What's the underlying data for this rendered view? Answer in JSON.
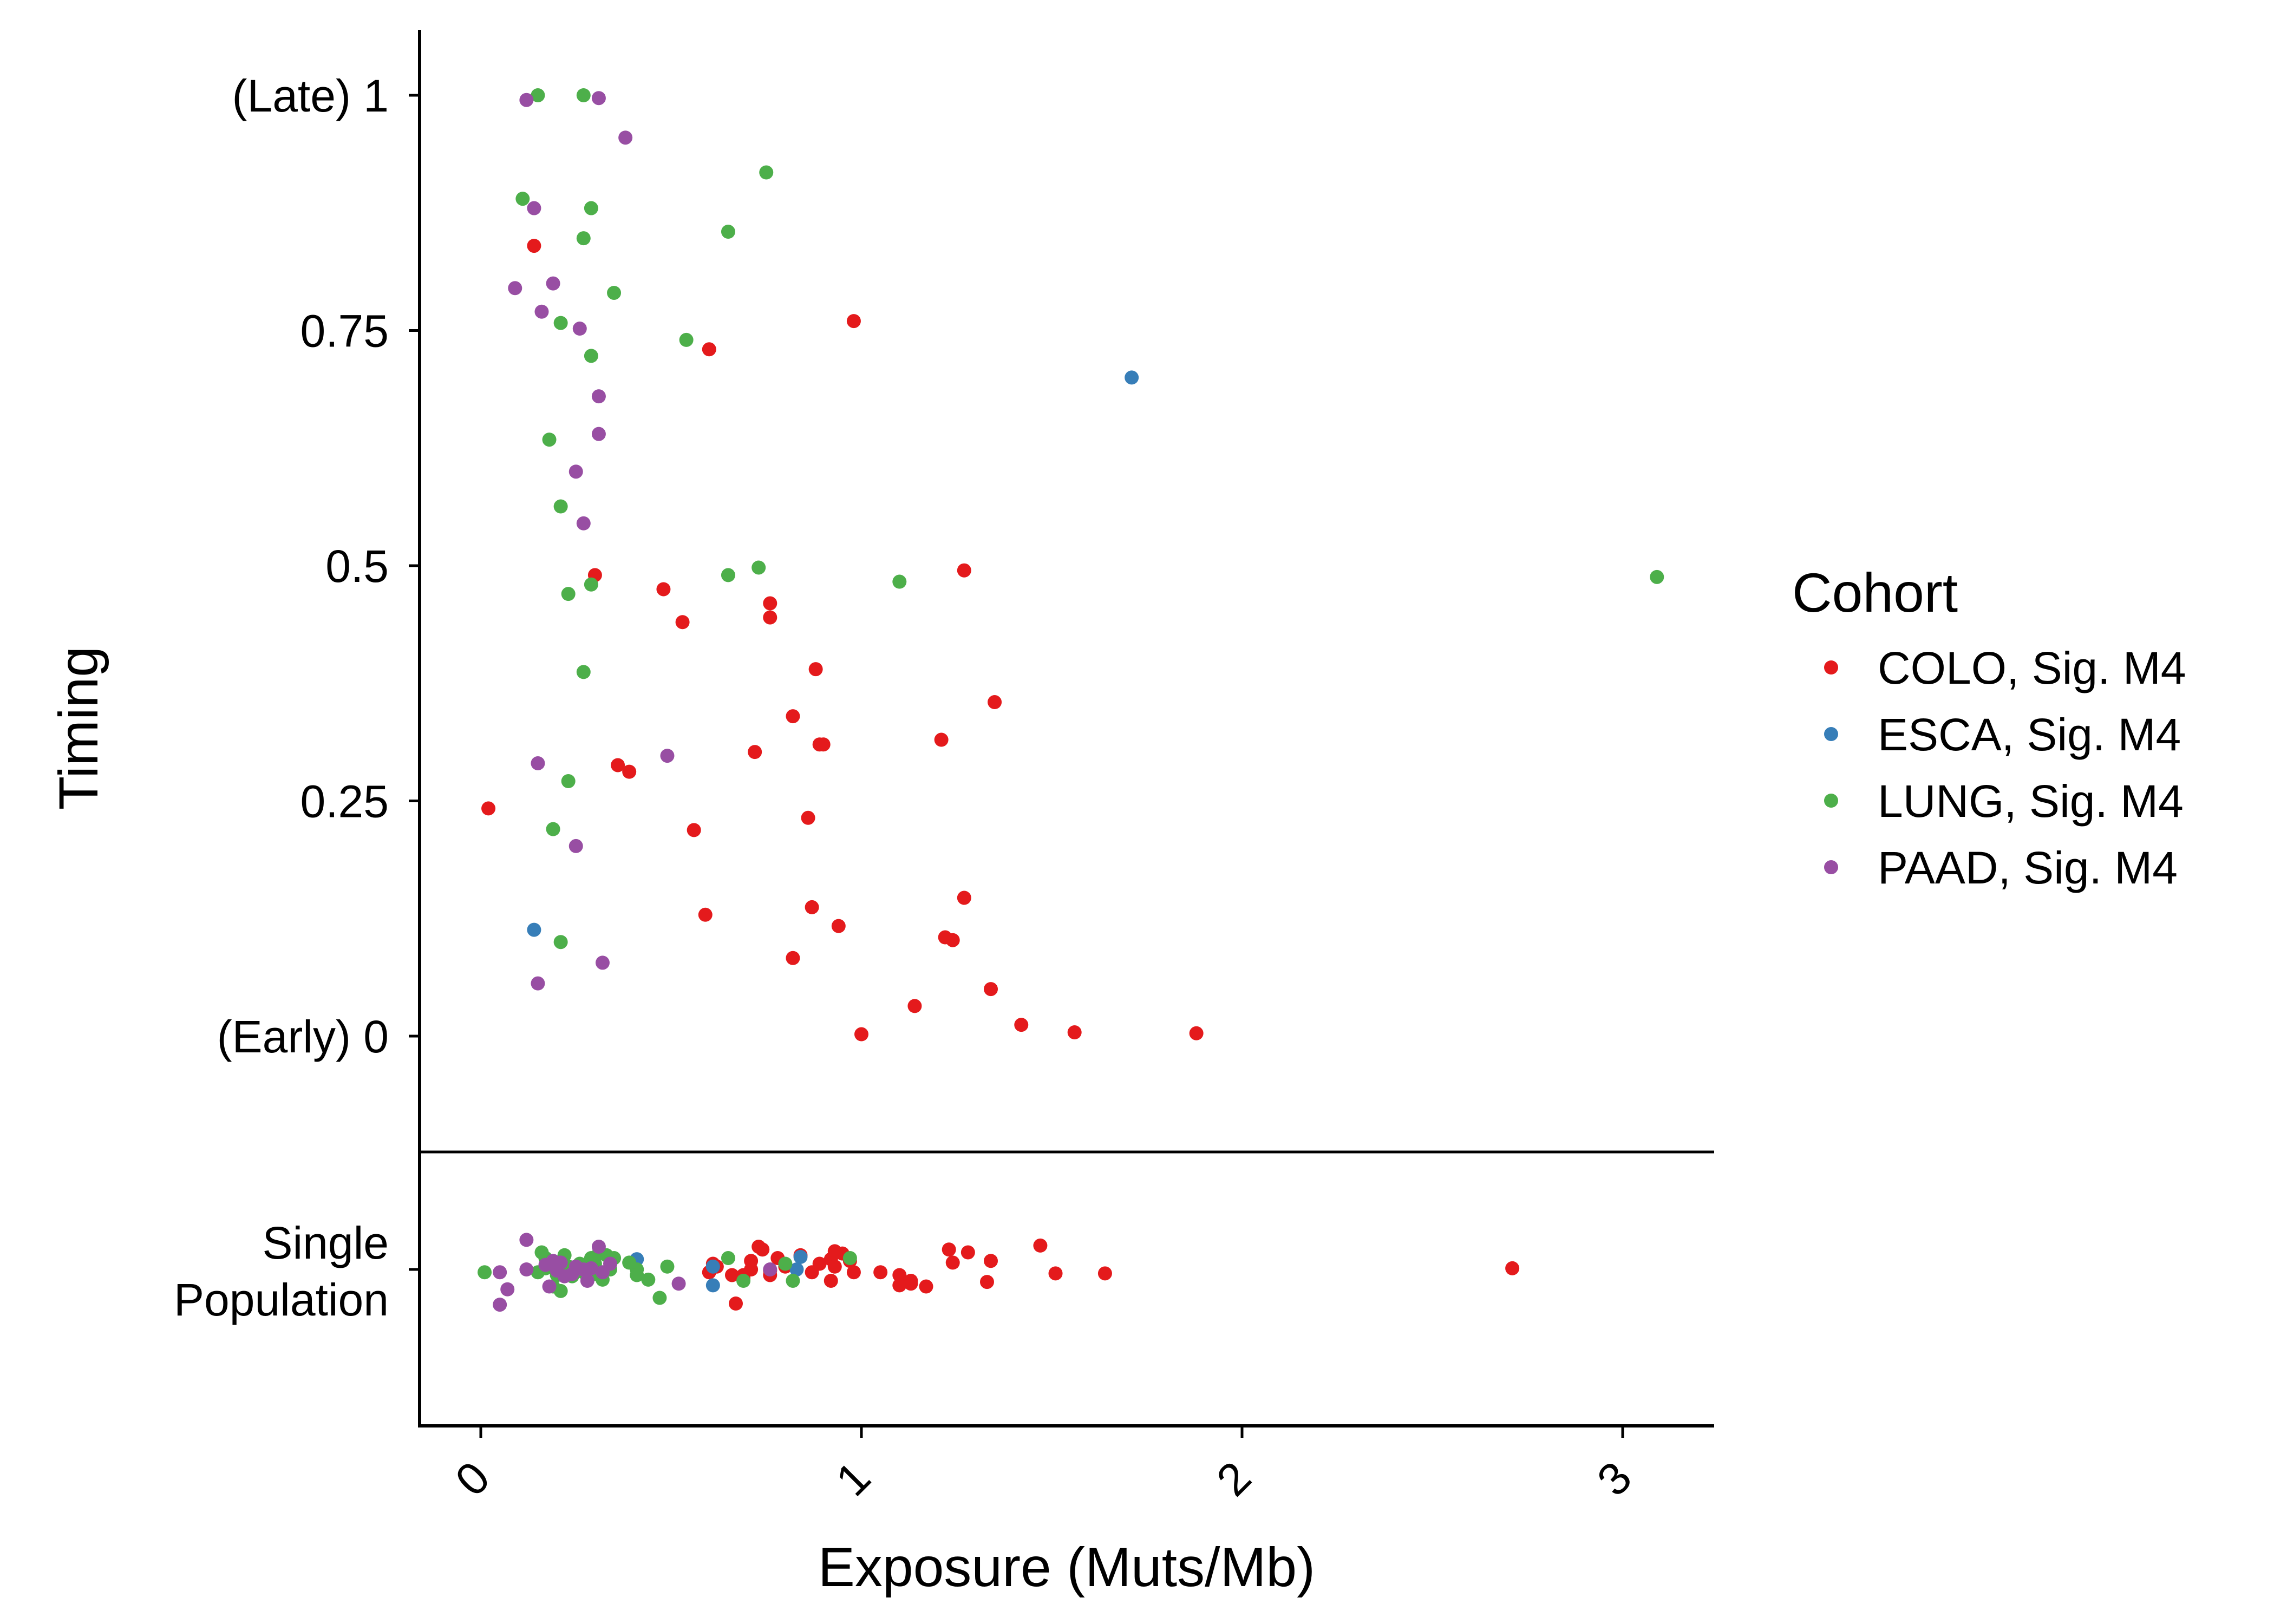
{
  "chart_data": {
    "type": "scatter",
    "title": "",
    "xlabel": "Exposure (Muts/Mb)",
    "ylabel": "Timing",
    "xlim": [
      -0.15,
      3.25
    ],
    "ylim": [
      0,
      1
    ],
    "x_ticks": [
      {
        "value": 0,
        "label": "0"
      },
      {
        "value": 1,
        "label": "1"
      },
      {
        "value": 2,
        "label": "2"
      },
      {
        "value": 3,
        "label": "3"
      }
    ],
    "y_ticks": [
      {
        "value": 1,
        "label": "(Late) 1"
      },
      {
        "value": 0.75,
        "label": "0.75"
      },
      {
        "value": 0.5,
        "label": "0.5"
      },
      {
        "value": 0.25,
        "label": "0.25"
      },
      {
        "value": 0,
        "label": "(Early) 0"
      }
    ],
    "single_population_label": [
      "Single",
      "Population"
    ],
    "grid": false,
    "legend": {
      "title": "Cohort",
      "position": "right",
      "entries": [
        {
          "label": "COLO, Sig. M4",
          "color": "#E41A1C"
        },
        {
          "label": "ESCA, Sig. M4",
          "color": "#377EB8"
        },
        {
          "label": "LUNG, Sig. M4",
          "color": "#4DAF4A"
        },
        {
          "label": "PAAD, Sig. M4",
          "color": "#984EA3"
        }
      ]
    },
    "series": [
      {
        "name": "COLO, Sig. M4",
        "color": "#E41A1C",
        "timed": [
          [
            0.14,
            0.84
          ],
          [
            0.98,
            0.76
          ],
          [
            0.6,
            0.73
          ],
          [
            0.3,
            0.49
          ],
          [
            1.27,
            0.495
          ],
          [
            0.48,
            0.475
          ],
          [
            0.76,
            0.46
          ],
          [
            0.76,
            0.445
          ],
          [
            0.53,
            0.44
          ],
          [
            0.88,
            0.39
          ],
          [
            1.35,
            0.355
          ],
          [
            0.82,
            0.34
          ],
          [
            1.21,
            0.315
          ],
          [
            0.89,
            0.31
          ],
          [
            0.9,
            0.31
          ],
          [
            0.72,
            0.302
          ],
          [
            0.36,
            0.288
          ],
          [
            0.39,
            0.281
          ],
          [
            0.02,
            0.242
          ],
          [
            0.86,
            0.232
          ],
          [
            0.56,
            0.219
          ],
          [
            1.27,
            0.147
          ],
          [
            0.87,
            0.137
          ],
          [
            0.59,
            0.129
          ],
          [
            0.94,
            0.117
          ],
          [
            1.22,
            0.105
          ],
          [
            1.24,
            0.102
          ],
          [
            0.82,
            0.083
          ],
          [
            1.34,
            0.05
          ],
          [
            1.14,
            0.032
          ],
          [
            1.42,
            0.012
          ],
          [
            1.0,
            0.002
          ],
          [
            1.56,
            0.004
          ],
          [
            1.88,
            0.003
          ]
        ],
        "single_population_x": [
          0.61,
          0.74,
          0.73,
          0.71,
          0.78,
          0.84,
          0.93,
          0.92,
          0.95,
          0.97,
          0.6,
          0.62,
          0.69,
          0.71,
          0.76,
          0.8,
          0.87,
          0.89,
          0.93,
          0.98,
          1.05,
          1.1,
          1.13,
          1.24,
          1.34,
          1.23,
          1.28,
          0.66,
          0.69,
          0.76,
          0.92,
          1.1,
          1.13,
          1.17,
          1.33,
          1.47,
          1.51,
          1.64,
          2.71,
          0.67
        ],
        "single_population_jitter": [
          0.1,
          0.35,
          0.4,
          0.15,
          0.2,
          0.25,
          0.32,
          0.18,
          0.28,
          0.15,
          -0.05,
          0.05,
          -0.1,
          0.0,
          -0.02,
          0.05,
          -0.05,
          0.1,
          0.05,
          -0.05,
          -0.05,
          -0.1,
          -0.2,
          0.12,
          0.15,
          0.35,
          0.3,
          -0.1,
          -0.15,
          -0.1,
          -0.2,
          -0.28,
          -0.25,
          -0.3,
          -0.22,
          0.42,
          -0.07,
          -0.07,
          0.02,
          -0.6
        ]
      },
      {
        "name": "ESCA, Sig. M4",
        "color": "#377EB8",
        "timed": [
          [
            1.71,
            0.7
          ],
          [
            0.14,
            0.113
          ]
        ],
        "single_population_x": [
          0.41,
          0.61,
          0.61,
          0.83,
          0.84
        ],
        "single_population_jitter": [
          0.18,
          0.05,
          -0.28,
          0.0,
          0.22
        ]
      },
      {
        "name": "LUNG, Sig. M4",
        "color": "#4DAF4A",
        "timed": [
          [
            0.15,
            1.0
          ],
          [
            0.27,
            1.0
          ],
          [
            0.75,
            0.918
          ],
          [
            0.11,
            0.89
          ],
          [
            0.29,
            0.88
          ],
          [
            0.65,
            0.855
          ],
          [
            0.27,
            0.848
          ],
          [
            0.35,
            0.79
          ],
          [
            0.21,
            0.758
          ],
          [
            0.54,
            0.74
          ],
          [
            0.29,
            0.723
          ],
          [
            0.18,
            0.634
          ],
          [
            0.21,
            0.563
          ],
          [
            0.73,
            0.498
          ],
          [
            0.65,
            0.49
          ],
          [
            1.1,
            0.483
          ],
          [
            0.29,
            0.48
          ],
          [
            0.23,
            0.47
          ],
          [
            0.27,
            0.387
          ],
          [
            0.23,
            0.271
          ],
          [
            0.19,
            0.22
          ],
          [
            0.21,
            0.1
          ],
          [
            3.09,
            0.488
          ]
        ],
        "single_population_x": [
          0.01,
          0.16,
          0.17,
          0.17,
          0.15,
          0.2,
          0.22,
          0.23,
          0.26,
          0.27,
          0.29,
          0.3,
          0.31,
          0.33,
          0.35,
          0.34,
          0.41,
          0.41,
          0.44,
          0.49,
          0.47,
          0.21,
          0.19,
          0.26,
          0.65,
          0.69,
          0.8,
          0.82,
          0.97,
          0.24,
          0.3,
          0.39,
          0.32
        ],
        "single_population_jitter": [
          -0.05,
          0.3,
          0.2,
          0.02,
          -0.05,
          -0.1,
          0.25,
          0.05,
          0.1,
          -0.05,
          0.2,
          0.1,
          0.28,
          0.25,
          0.2,
          0.0,
          0.0,
          -0.1,
          -0.18,
          0.05,
          -0.5,
          -0.38,
          -0.3,
          0.05,
          0.2,
          -0.2,
          0.1,
          -0.2,
          0.2,
          -0.12,
          -0.08,
          0.12,
          -0.18
        ]
      },
      {
        "name": "PAAD, Sig. M4",
        "color": "#984EA3",
        "timed": [
          [
            0.12,
            0.995
          ],
          [
            0.31,
            0.997
          ],
          [
            0.38,
            0.955
          ],
          [
            0.14,
            0.88
          ],
          [
            0.19,
            0.8
          ],
          [
            0.09,
            0.795
          ],
          [
            0.16,
            0.77
          ],
          [
            0.26,
            0.752
          ],
          [
            0.31,
            0.68
          ],
          [
            0.31,
            0.64
          ],
          [
            0.25,
            0.6
          ],
          [
            0.27,
            0.545
          ],
          [
            0.15,
            0.29
          ],
          [
            0.49,
            0.298
          ],
          [
            0.25,
            0.202
          ],
          [
            0.32,
            0.078
          ],
          [
            0.15,
            0.056
          ]
        ],
        "single_population_x": [
          0.05,
          0.12,
          0.17,
          0.19,
          0.2,
          0.22,
          0.24,
          0.25,
          0.27,
          0.28,
          0.31,
          0.32,
          0.34,
          0.29,
          0.18,
          0.12,
          0.07,
          0.05,
          0.52,
          0.76,
          0.21
        ],
        "single_population_jitter": [
          -0.05,
          0.52,
          0.08,
          0.15,
          -0.02,
          -0.12,
          -0.08,
          0.05,
          0.0,
          -0.2,
          0.4,
          -0.05,
          0.1,
          0.02,
          -0.3,
          0.0,
          -0.35,
          -0.62,
          -0.25,
          0.0,
          0.12
        ]
      }
    ]
  }
}
